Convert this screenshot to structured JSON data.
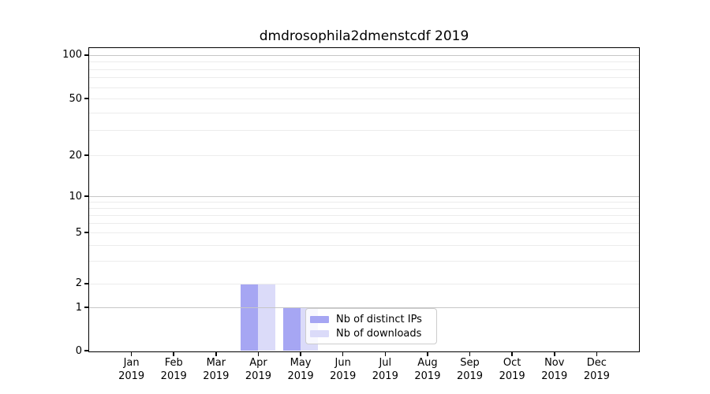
{
  "chart_data": {
    "type": "bar",
    "title": "dmdrosophila2dmenstcdf 2019",
    "categories": [
      {
        "month": "Jan",
        "year": "2019"
      },
      {
        "month": "Feb",
        "year": "2019"
      },
      {
        "month": "Mar",
        "year": "2019"
      },
      {
        "month": "Apr",
        "year": "2019"
      },
      {
        "month": "May",
        "year": "2019"
      },
      {
        "month": "Jun",
        "year": "2019"
      },
      {
        "month": "Jul",
        "year": "2019"
      },
      {
        "month": "Aug",
        "year": "2019"
      },
      {
        "month": "Sep",
        "year": "2019"
      },
      {
        "month": "Oct",
        "year": "2019"
      },
      {
        "month": "Nov",
        "year": "2019"
      },
      {
        "month": "Dec",
        "year": "2019"
      }
    ],
    "series": [
      {
        "name": "Nb of distinct IPs",
        "color": "#a6a6f3",
        "values": [
          0,
          0,
          0,
          2,
          1,
          0,
          0,
          0,
          0,
          0,
          0,
          0
        ]
      },
      {
        "name": "Nb of downloads",
        "color": "#dbdbf9",
        "values": [
          0,
          0,
          0,
          2,
          1,
          0,
          0,
          0,
          0,
          0,
          0,
          0
        ]
      }
    ],
    "y_axis": {
      "scale": "symlog-like",
      "range": [
        0,
        100
      ],
      "ticks": [
        0,
        1,
        2,
        5,
        10,
        20,
        50,
        100
      ],
      "major_grid_values": [
        1,
        10,
        100
      ],
      "minor_grid_values": [
        3,
        4,
        6,
        7,
        8,
        9,
        30,
        40,
        60,
        70,
        80,
        90
      ],
      "anchors": [
        [
          0,
          0
        ],
        [
          1,
          0.1432
        ],
        [
          2,
          0.2214
        ],
        [
          5,
          0.3906
        ],
        [
          10,
          0.5104
        ],
        [
          20,
          0.6458
        ],
        [
          50,
          0.8333
        ],
        [
          100,
          0.9766
        ]
      ]
    },
    "x_axis": {
      "label_format": "month over year",
      "grid": false
    },
    "legend": {
      "position": "lower center-left",
      "labels": [
        "Nb of distinct IPs",
        "Nb of downloads"
      ]
    },
    "colors": {
      "distinct_ips": "#a6a6f3",
      "downloads": "#dbdbf9",
      "grid_major": "#c6c6c6",
      "grid_minor": "#ececec",
      "spine": "#000000"
    }
  }
}
